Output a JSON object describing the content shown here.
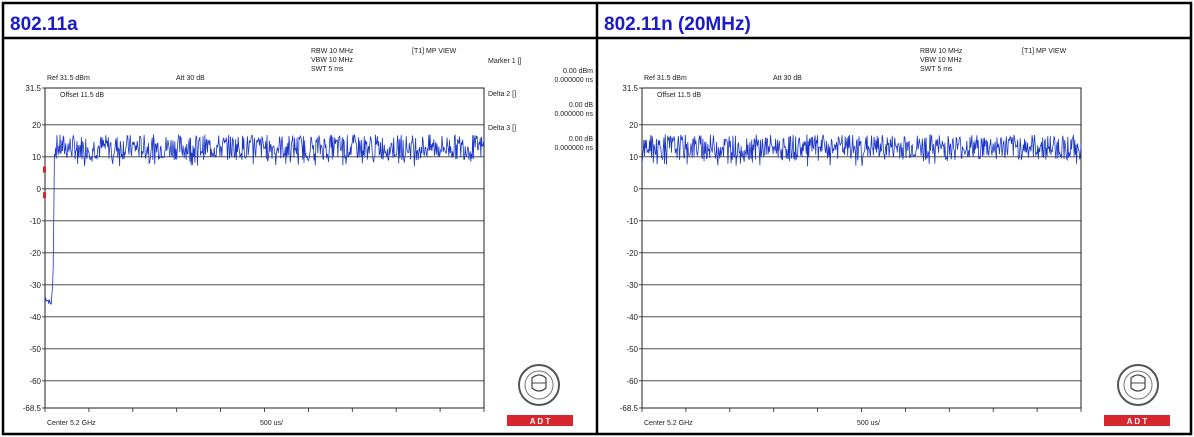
{
  "panels": [
    {
      "title": "802.11a",
      "settings": {
        "rbw": "RBW 10 MHz",
        "vbw": "VBW 10 MHz",
        "swt": "SWT 5 ms",
        "view": "[T1] MP VIEW"
      },
      "ref": "Ref 31.5 dBm",
      "att": "Att  30 dB",
      "offset": "Offset 11.5 dB",
      "center": "Center 5.2 GHz",
      "span": "500 us/",
      "markers": [
        {
          "label": "Marker 1 []",
          "value": "0.00 dBm",
          "time": "0.000000 ns"
        },
        {
          "label": "Delta 2 []",
          "value": "0.00 dB",
          "time": "0.000000 ns"
        },
        {
          "label": "Delta 3 []",
          "value": "0.00 dB",
          "time": "0.000000 ns"
        }
      ],
      "logo_text": "A  D  T"
    },
    {
      "title": "802.11n (20MHz)",
      "settings": {
        "rbw": "RBW 10 MHz",
        "vbw": "VBW 10 MHz",
        "swt": "SWT 5 ms",
        "view": "[T1] MP VIEW"
      },
      "ref": "Ref 31.5 dBm",
      "att": "Att  30 dB",
      "offset": "Offset 11.5 dB",
      "center": "Center 5.2 GHz",
      "span": "500 us/",
      "markers": [],
      "logo_text": "A  D  T"
    }
  ],
  "chart_data": [
    {
      "type": "line",
      "title": "802.11a",
      "ylim": [
        -68.5,
        31.5
      ],
      "xlim": [
        0,
        5
      ],
      "x_unit": "ms",
      "y_ticks": [
        "31.5",
        "20",
        "10",
        "0",
        "-10",
        "-20",
        "-30",
        "-40",
        "-50",
        "-60",
        "-68.5"
      ],
      "y_tick_values": [
        31.5,
        20,
        10,
        0,
        -10,
        -20,
        -30,
        -40,
        -50,
        -60,
        -68.5
      ],
      "grid": true,
      "series": [
        {
          "color": "#1b36c8",
          "baseline_points": [
            [
              0.0,
              -34.0
            ],
            [
              0.04,
              -35.0
            ],
            [
              0.07,
              -36.0
            ],
            [
              0.09,
              -30.0
            ],
            [
              0.11,
              12.0
            ],
            [
              0.2,
              13.0
            ],
            [
              5.0,
              13.0
            ]
          ],
          "noise_band": [
            9,
            17
          ]
        }
      ]
    },
    {
      "type": "line",
      "title": "802.11n (20MHz)",
      "ylim": [
        -68.5,
        31.5
      ],
      "xlim": [
        0,
        5
      ],
      "x_unit": "ms",
      "y_ticks": [
        "31.5",
        "20",
        "10",
        "0",
        "-10",
        "-20",
        "-30",
        "-40",
        "-50",
        "-60",
        "-68.5"
      ],
      "y_tick_values": [
        31.5,
        20,
        10,
        0,
        -10,
        -20,
        -30,
        -40,
        -50,
        -60,
        -68.5
      ],
      "grid": true,
      "series": [
        {
          "color": "#1b36c8",
          "baseline_points": [
            [
              0.0,
              13.0
            ],
            [
              5.0,
              13.0
            ]
          ],
          "noise_band": [
            9,
            17
          ]
        }
      ]
    }
  ]
}
